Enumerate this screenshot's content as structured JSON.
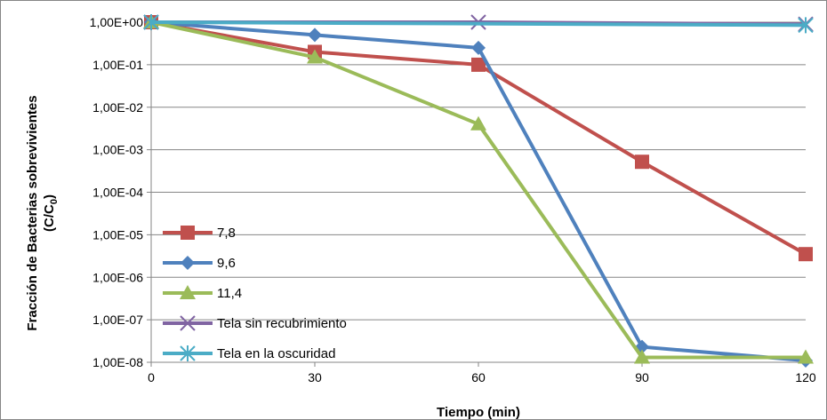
{
  "chart_data": {
    "type": "line",
    "xlabel": "Tiempo (min)",
    "ylabel": "Fracción de Bacterias sobrevivientes",
    "ylabel2_main": "(C/C",
    "ylabel2_sub": "0",
    "ylabel2_end": ")",
    "yscale": "log",
    "xlim": [
      0,
      120
    ],
    "ylim": [
      1e-08,
      1
    ],
    "x_ticks": [
      "0",
      "30",
      "60",
      "90",
      "120"
    ],
    "y_ticks": [
      "1,00E+00",
      "1,00E-01",
      "1,00E-02",
      "1,00E-03",
      "1,00E-04",
      "1,00E-05",
      "1,00E-06",
      "1,00E-07",
      "1,00E-08"
    ],
    "legend_position": "left",
    "grid": "horizontal",
    "series": [
      {
        "name": "7,8",
        "color": "#C0504D",
        "marker": "square",
        "x": [
          0,
          30,
          60,
          90,
          120
        ],
        "y": [
          1,
          0.2,
          0.1,
          0.00052,
          3.5e-06
        ]
      },
      {
        "name": "9,6",
        "color": "#4F81BD",
        "marker": "diamond",
        "x": [
          0,
          30,
          60,
          90,
          120
        ],
        "y": [
          1,
          0.5,
          0.25,
          2.3e-08,
          1.1e-08
        ]
      },
      {
        "name": "11,4",
        "color": "#9BBB59",
        "marker": "triangle",
        "x": [
          0,
          30,
          60,
          90,
          120
        ],
        "y": [
          1,
          0.15,
          0.004,
          1.3e-08,
          1.3e-08
        ]
      },
      {
        "name": "Tela sin recubrimiento",
        "color": "#8064A2",
        "marker": "x",
        "x": [
          0,
          60,
          120
        ],
        "y": [
          1,
          1,
          0.9
        ]
      },
      {
        "name": "Tela en la oscuridad",
        "color": "#4BACC6",
        "marker": "star",
        "x": [
          0,
          120
        ],
        "y": [
          1,
          0.85
        ]
      }
    ]
  }
}
